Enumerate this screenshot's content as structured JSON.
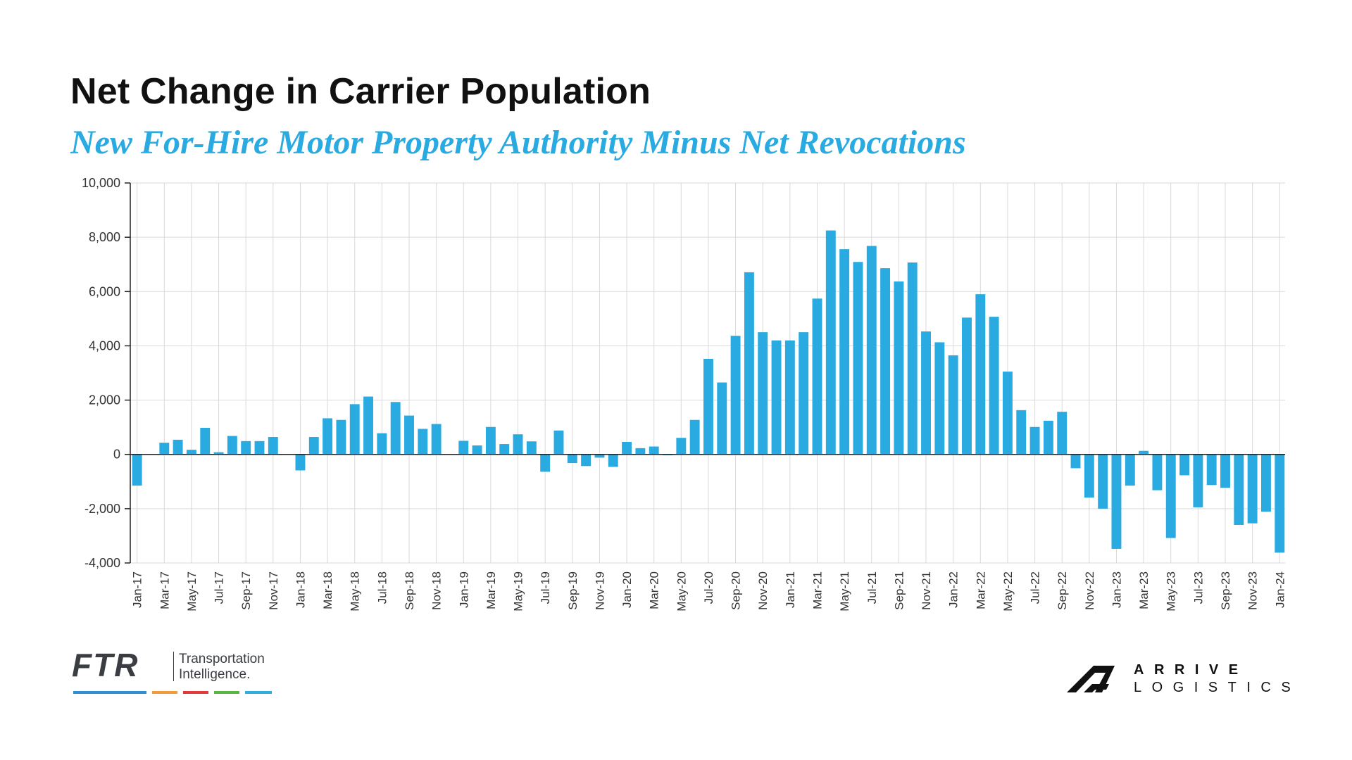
{
  "header": {
    "title": "Net Change in Carrier Population",
    "subtitle": "New For-Hire Motor Property Authority Minus Net Revocations"
  },
  "colors": {
    "bar": "#29abe2",
    "subtitle": "#29abe2",
    "grid": "#d9d9d9",
    "axis": "#222222",
    "text": "#111111"
  },
  "chart_data": {
    "type": "bar",
    "title": "Net Change in Carrier Population",
    "subtitle": "New For-Hire Motor Property Authority Minus Net Revocations",
    "xlabel": "",
    "ylabel": "",
    "ylim": [
      -4000,
      10000
    ],
    "yticks": [
      10000,
      8000,
      6000,
      4000,
      2000,
      0,
      -2000,
      -4000
    ],
    "ytick_labels": [
      "10,000",
      "8,000",
      "6,000",
      "4,000",
      "2,000",
      "0",
      "-2,000",
      "-4,000"
    ],
    "grid": true,
    "legend": "none",
    "categories": [
      "Jan-17",
      "Feb-17",
      "Mar-17",
      "Apr-17",
      "May-17",
      "Jun-17",
      "Jul-17",
      "Aug-17",
      "Sep-17",
      "Oct-17",
      "Nov-17",
      "Dec-17",
      "Jan-18",
      "Feb-18",
      "Mar-18",
      "Apr-18",
      "May-18",
      "Jun-18",
      "Jul-18",
      "Aug-18",
      "Sep-18",
      "Oct-18",
      "Nov-18",
      "Dec-18",
      "Jan-19",
      "Feb-19",
      "Mar-19",
      "Apr-19",
      "May-19",
      "Jun-19",
      "Jul-19",
      "Aug-19",
      "Sep-19",
      "Oct-19",
      "Nov-19",
      "Dec-19",
      "Jan-20",
      "Feb-20",
      "Mar-20",
      "Apr-20",
      "May-20",
      "Jun-20",
      "Jul-20",
      "Aug-20",
      "Sep-20",
      "Oct-20",
      "Nov-20",
      "Dec-20",
      "Jan-21",
      "Feb-21",
      "Mar-21",
      "Apr-21",
      "May-21",
      "Jun-21",
      "Jul-21",
      "Aug-21",
      "Sep-21",
      "Oct-21",
      "Nov-21",
      "Dec-21",
      "Jan-22",
      "Feb-22",
      "Mar-22",
      "Apr-22",
      "May-22",
      "Jun-22",
      "Jul-22",
      "Aug-22",
      "Sep-22",
      "Oct-22",
      "Nov-22",
      "Dec-22",
      "Jan-23",
      "Feb-23",
      "Mar-23",
      "Apr-23",
      "May-23",
      "Jun-23",
      "Jul-23",
      "Aug-23",
      "Sep-23",
      "Oct-23",
      "Nov-23",
      "Dec-23",
      "Jan-24"
    ],
    "tick_labels": [
      "Jan-17",
      "Mar-17",
      "May-17",
      "Jul-17",
      "Sep-17",
      "Nov-17",
      "Jan-18",
      "Mar-18",
      "May-18",
      "Jul-18",
      "Sep-18",
      "Nov-18",
      "Jan-19",
      "Mar-19",
      "May-19",
      "Jul-19",
      "Sep-19",
      "Nov-19",
      "Jan-20",
      "Mar-20",
      "May-20",
      "Jul-20",
      "Sep-20",
      "Nov-20",
      "Jan-21",
      "Mar-21",
      "May-21",
      "Jul-21",
      "Sep-21",
      "Nov-21",
      "Jan-22",
      "Mar-22",
      "May-22",
      "Jul-22",
      "Sep-22",
      "Nov-22",
      "Jan-23",
      "Mar-23",
      "May-23",
      "Jul-23",
      "Sep-23",
      "Nov-23",
      "Jan-24"
    ],
    "values": [
      -1150,
      0,
      430,
      540,
      170,
      980,
      80,
      680,
      490,
      490,
      640,
      0,
      -590,
      640,
      1330,
      1270,
      1850,
      2130,
      780,
      1930,
      1430,
      940,
      1120,
      0,
      500,
      330,
      1010,
      380,
      740,
      480,
      -640,
      880,
      -320,
      -430,
      -120,
      -460,
      460,
      230,
      290,
      -30,
      610,
      1270,
      3520,
      2650,
      4370,
      6710,
      4500,
      4200,
      4200,
      4500,
      5740,
      8250,
      7560,
      7090,
      7680,
      6860,
      6370,
      7070,
      4530,
      4130,
      3650,
      5040,
      5900,
      5070,
      3050,
      1630,
      1010,
      1240,
      1570,
      -510,
      -1590,
      -2000,
      -3480,
      -1150,
      130,
      -1320,
      -3080,
      -770,
      -1950,
      -1130,
      -1230,
      -2600,
      -2540,
      -2110,
      -3620
    ]
  },
  "branding": {
    "ftr_wordmark": "FTR",
    "ftr_tagline_line1": "Transportation",
    "ftr_tagline_line2": "Intelligence.",
    "ftr_bar_colors": [
      "#2f8fd6",
      "#f39b3a",
      "#e03a3a",
      "#5bb543",
      "#2faee0"
    ],
    "arrive_line1": "ARRIVE",
    "arrive_line2": "LOGISTICS"
  }
}
